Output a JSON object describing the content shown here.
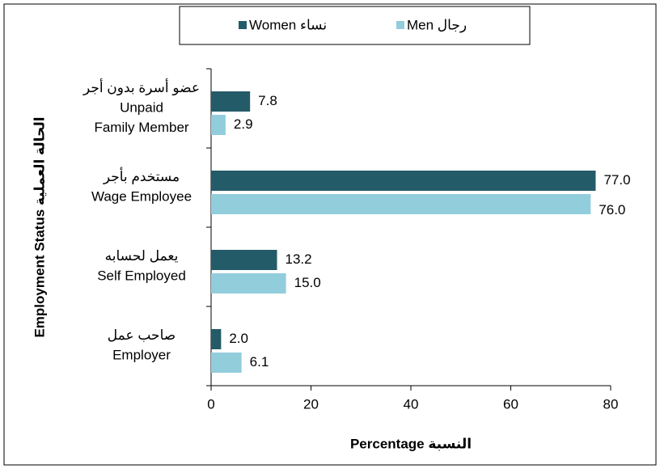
{
  "chart_data": {
    "type": "bar",
    "orientation": "horizontal",
    "categories": [
      [
        "عضو أسرة بدون أجر",
        "Unpaid",
        "Family Member"
      ],
      [
        "مستخدم بأجر",
        "Wage Employee"
      ],
      [
        "يعمل لحسابه",
        "Self Employed"
      ],
      [
        "صاحب عمل",
        "Employer"
      ]
    ],
    "series": [
      {
        "name": "Women نساء",
        "color": "#245b69",
        "values": [
          7.8,
          77,
          13.2,
          2
        ],
        "value_labels": [
          "7.8",
          "77.0",
          "13.2",
          "2.0"
        ]
      },
      {
        "name": "Men رجال",
        "color": "#92cddc",
        "values": [
          2.9,
          76,
          15,
          6.1
        ],
        "value_labels": [
          "2.9",
          "76.0",
          "15.0",
          "6.1"
        ]
      }
    ],
    "xlim": [
      0,
      80
    ],
    "xticks": [
      0,
      20,
      40,
      60,
      80
    ],
    "xlabel": "Percentage  النسبة",
    "ylabel": "Employment Status  الحالة العملية"
  }
}
